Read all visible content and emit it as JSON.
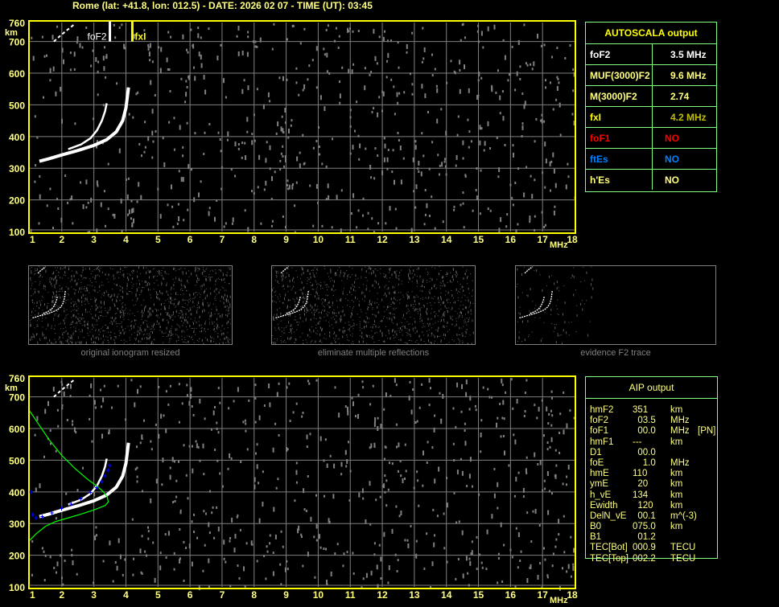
{
  "header": {
    "title": "Rome (lat: +41.8, lon: 012.5) - DATE: 2026 02 07 - TIME (UT): 03:45"
  },
  "colors": {
    "axis": "#ffff00",
    "axis_text": "#ffff80",
    "grid": "#808080",
    "trace": "#ffffff",
    "noise": "#808080",
    "profile": "#00ff00",
    "aip_fit": "#0000ff",
    "table_border": "#80ff80"
  },
  "chart_data": [
    {
      "type": "scatter",
      "name": "autoscala-ionogram",
      "xlabel": "MHz",
      "ylabel": "km",
      "xlim": [
        1,
        18
      ],
      "ylim": [
        100,
        760
      ],
      "xticks": [
        "1",
        "2",
        "3",
        "4",
        "5",
        "6",
        "7",
        "8",
        "9",
        "10",
        "11",
        "12",
        "13",
        "14",
        "15",
        "16",
        "17",
        "18"
      ],
      "yticks": [
        "100",
        "200",
        "300",
        "400",
        "500",
        "600",
        "700",
        "760"
      ],
      "grid": true,
      "markers": [
        {
          "label": "foF2",
          "freq": 3.5,
          "color": "#ffffff"
        },
        {
          "label": "fxI",
          "freq": 4.2,
          "color": "#ffff00"
        }
      ],
      "traces": [
        {
          "kind": "o-trace",
          "points": [
            [
              1.3,
              322
            ],
            [
              1.6,
              330
            ],
            [
              2.0,
              342
            ],
            [
              2.5,
              356
            ],
            [
              3.0,
              372
            ],
            [
              3.4,
              390
            ],
            [
              3.7,
              415
            ],
            [
              3.9,
              450
            ],
            [
              4.0,
              490
            ],
            [
              4.05,
              530
            ],
            [
              4.08,
              555
            ]
          ]
        },
        {
          "kind": "x-trace",
          "points": [
            [
              2.2,
              360
            ],
            [
              2.6,
              375
            ],
            [
              2.9,
              395
            ],
            [
              3.1,
              420
            ],
            [
              3.25,
              450
            ],
            [
              3.35,
              480
            ],
            [
              3.4,
              505
            ]
          ]
        },
        {
          "kind": "second-hop",
          "points": [
            [
              1.75,
              700
            ],
            [
              1.95,
              718
            ],
            [
              2.15,
              735
            ],
            [
              2.4,
              755
            ]
          ]
        }
      ]
    },
    {
      "type": "scatter",
      "name": "aip-ionogram",
      "xlabel": "MHz",
      "ylabel": "km",
      "xlim": [
        1,
        18
      ],
      "ylim": [
        100,
        760
      ],
      "xticks": [
        "1",
        "2",
        "3",
        "4",
        "5",
        "6",
        "7",
        "8",
        "9",
        "10",
        "11",
        "12",
        "13",
        "14",
        "15",
        "16",
        "17",
        "18"
      ],
      "yticks": [
        "100",
        "200",
        "300",
        "400",
        "500",
        "600",
        "700",
        "760"
      ],
      "grid": true,
      "traces": [
        {
          "kind": "o-trace",
          "points": [
            [
              1.3,
              322
            ],
            [
              1.6,
              330
            ],
            [
              2.0,
              342
            ],
            [
              2.5,
              356
            ],
            [
              3.0,
              372
            ],
            [
              3.4,
              390
            ],
            [
              3.7,
              415
            ],
            [
              3.9,
              450
            ],
            [
              4.0,
              490
            ],
            [
              4.05,
              530
            ],
            [
              4.08,
              555
            ]
          ]
        },
        {
          "kind": "x-trace",
          "points": [
            [
              2.2,
              360
            ],
            [
              2.6,
              375
            ],
            [
              2.9,
              395
            ],
            [
              3.1,
              420
            ],
            [
              3.25,
              450
            ],
            [
              3.35,
              480
            ],
            [
              3.4,
              505
            ]
          ]
        },
        {
          "kind": "second-hop",
          "points": [
            [
              1.75,
              700
            ],
            [
              1.95,
              718
            ],
            [
              2.15,
              735
            ],
            [
              2.4,
              755
            ]
          ]
        }
      ],
      "profile": [
        [
          1.0,
          655
        ],
        [
          1.3,
          610
        ],
        [
          1.6,
          565
        ],
        [
          2.0,
          515
        ],
        [
          2.4,
          475
        ],
        [
          2.8,
          440
        ],
        [
          3.1,
          418
        ],
        [
          3.3,
          400
        ],
        [
          3.42,
          383
        ],
        [
          3.45,
          368
        ],
        [
          3.35,
          357
        ],
        [
          3.0,
          343
        ],
        [
          2.6,
          330
        ],
        [
          2.2,
          318
        ],
        [
          1.8,
          306
        ],
        [
          1.5,
          292
        ],
        [
          1.2,
          268
        ],
        [
          1.0,
          247
        ]
      ],
      "aip_fit": [
        [
          1.05,
          400
        ],
        [
          1.1,
          328
        ],
        [
          1.2,
          318
        ],
        [
          1.4,
          322
        ],
        [
          1.7,
          334
        ],
        [
          2.0,
          347
        ],
        [
          2.3,
          362
        ],
        [
          2.6,
          378
        ],
        [
          2.9,
          398
        ],
        [
          3.1,
          413
        ],
        [
          3.25,
          432
        ],
        [
          3.35,
          450
        ],
        [
          3.45,
          468
        ],
        [
          3.5,
          483
        ]
      ]
    }
  ],
  "thumbnails": [
    {
      "caption": "original ionogram resized"
    },
    {
      "caption": "eliminate multiple reflections"
    },
    {
      "caption": "evidence F2 trace"
    }
  ],
  "autoscala": {
    "title": "AUTOSCALA output",
    "rows": [
      {
        "key": "foF2",
        "value": "3.5 MHz",
        "key_color": "#ffffff",
        "value_color": "#ffffff"
      },
      {
        "key": "MUF(3000)F2",
        "value": "9.6 MHz",
        "key_color": "#ffff80",
        "value_color": "#ffff80"
      },
      {
        "key": "M(3000)F2",
        "value": "2.74",
        "key_color": "#ffff80",
        "value_color": "#ffff80"
      },
      {
        "key": "fxI",
        "value": "4.2 MHz",
        "key_color": "#ffff00",
        "value_color": "#c0c000"
      },
      {
        "key": "foF1",
        "value": "NO",
        "key_color": "#ff0000",
        "value_color": "#ff0000"
      },
      {
        "key": "ftEs",
        "value": "NO",
        "key_color": "#0080ff",
        "value_color": "#0080ff"
      },
      {
        "key": "h'Es",
        "value": "NO",
        "key_color": "#ffff80",
        "value_color": "#ffff80"
      }
    ]
  },
  "aip": {
    "title": "AIP output",
    "rows": [
      {
        "key": "hmF2",
        "value": "351",
        "unit": "km",
        "extra": ""
      },
      {
        "key": "foF2",
        "value": "  03.5",
        "unit": "MHz",
        "extra": ""
      },
      {
        "key": "foF1",
        "value": "  00.0",
        "unit": "MHz",
        "extra": "[PN]"
      },
      {
        "key": "hmF1",
        "value": "---",
        "unit": "km",
        "extra": ""
      },
      {
        "key": "D1",
        "value": "  00.0",
        "unit": "",
        "extra": ""
      },
      {
        "key": "foE",
        "value": "    1.0",
        "unit": "MHz",
        "extra": ""
      },
      {
        "key": "hmE",
        "value": "110",
        "unit": "km",
        "extra": ""
      },
      {
        "key": "ymE",
        "value": "  20",
        "unit": "km",
        "extra": ""
      },
      {
        "key": "h_vE",
        "value": "134",
        "unit": "km",
        "extra": ""
      },
      {
        "key": "Ewidth",
        "value": "  120",
        "unit": "km",
        "extra": ""
      },
      {
        "key": "DelN_vE",
        "value": "  00.1",
        "unit": "m^(-3)",
        "extra": ""
      },
      {
        "key": "B0",
        "value": "075.0",
        "unit": "km",
        "extra": ""
      },
      {
        "key": "B1",
        "value": "  01.2",
        "unit": "",
        "extra": ""
      },
      {
        "key": "TEC[Bot]",
        "value": "000.9",
        "unit": "TECU",
        "extra": ""
      },
      {
        "key": "TEC[Top]",
        "value": "002.2",
        "unit": "TECU",
        "extra": ""
      }
    ]
  }
}
